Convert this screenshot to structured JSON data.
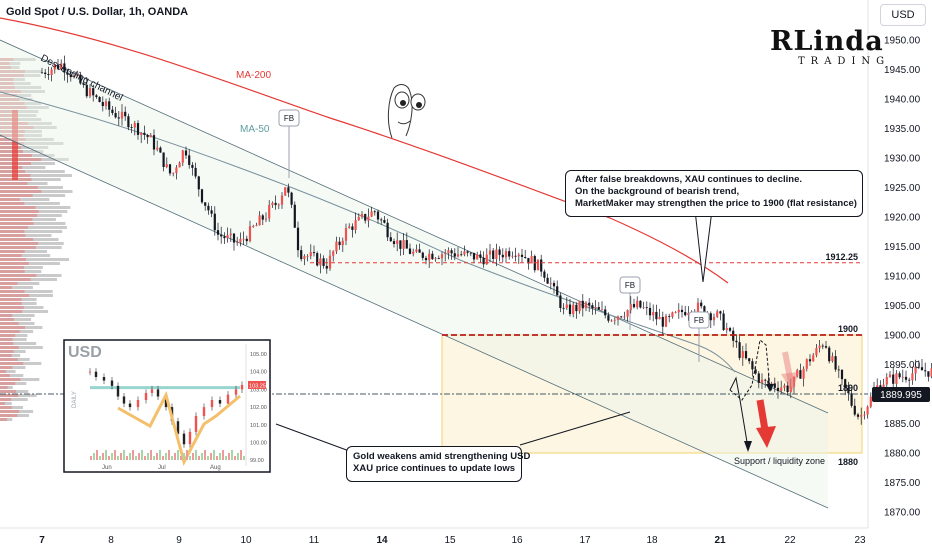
{
  "header": {
    "title": "Gold Spot / U.S. Dollar, 1h, OANDA",
    "currency_button": "USD"
  },
  "logo": {
    "main": "RLinda",
    "sub": "TRADING"
  },
  "chart_data": {
    "type": "candlestick",
    "title": "Gold Spot / U.S. Dollar, 1h, OANDA",
    "y_range": [
      1866,
      1956
    ],
    "y_ticks": [
      "1950.00",
      "1945.00",
      "1940.00",
      "1935.00",
      "1930.00",
      "1925.00",
      "1920.00",
      "1915.00",
      "1910.00",
      "1905.00",
      "1900.00",
      "1895.00",
      "1890.00",
      "1885.00",
      "1880.00",
      "1875.00",
      "1870.00"
    ],
    "x_ticks": [
      "7",
      "8",
      "9",
      "10",
      "11",
      "14",
      "15",
      "16",
      "17",
      "18",
      "21",
      "22",
      "23"
    ],
    "bold_x_ticks": [
      "7",
      "14",
      "21"
    ],
    "current_price": "1889.995",
    "close_path": [
      [
        7.0,
        1944.5
      ],
      [
        7.3,
        1946
      ],
      [
        7.6,
        1942
      ],
      [
        8.0,
        1938
      ],
      [
        8.3,
        1936
      ],
      [
        8.6,
        1933
      ],
      [
        8.9,
        1927
      ],
      [
        9.1,
        1932
      ],
      [
        9.3,
        1925
      ],
      [
        9.6,
        1917
      ],
      [
        9.9,
        1915.5
      ],
      [
        10.2,
        1919
      ],
      [
        10.5,
        1923
      ],
      [
        10.6,
        1926
      ],
      [
        10.8,
        1914
      ],
      [
        11.2,
        1912
      ],
      [
        11.5,
        1918
      ],
      [
        11.9,
        1921
      ],
      [
        12.2,
        1916
      ],
      [
        12.5,
        1913.5
      ],
      [
        13.0,
        1914
      ],
      [
        13.5,
        1913
      ],
      [
        14.0,
        1914.5
      ],
      [
        14.4,
        1911
      ],
      [
        14.7,
        1904
      ],
      [
        15.0,
        1905
      ],
      [
        15.4,
        1903
      ],
      [
        15.8,
        1905
      ],
      [
        16.2,
        1902
      ],
      [
        16.6,
        1905
      ],
      [
        17.0,
        1903
      ],
      [
        17.3,
        1897
      ],
      [
        17.6,
        1892
      ],
      [
        18.0,
        1891
      ],
      [
        18.3,
        1896
      ],
      [
        18.5,
        1899
      ],
      [
        18.7,
        1893
      ],
      [
        19.0,
        1886
      ],
      [
        19.3,
        1892
      ],
      [
        19.6,
        1893
      ],
      [
        19.9,
        1894
      ],
      [
        20.2,
        1893.5
      ],
      [
        20.5,
        1888.5
      ],
      [
        20.8,
        1890
      ]
    ],
    "levels": [
      {
        "value": 1912.25,
        "label": "1912.25",
        "style": "dashed",
        "color": "#e53935"
      },
      {
        "value": 1900,
        "label": "1900",
        "style": "dashed",
        "color": "#b71c1c"
      },
      {
        "value": 1890,
        "label": "1890",
        "style": "dashdot",
        "color": "#455a64"
      },
      {
        "value": 1880,
        "label": "1880",
        "style": "none",
        "color": "#f5d76e"
      }
    ],
    "indicators": [
      {
        "name": "MA-200",
        "color": "#e53935"
      },
      {
        "name": "MA-50",
        "color": "#5f9ea0"
      }
    ],
    "annotations": {
      "descending_channel": "Descending channel",
      "fb": [
        "FB",
        "FB",
        "FB"
      ],
      "support_zone": "Support / liquidity zone",
      "callout_top": [
        "After false breakdowns, XAU continues to decline.",
        "On the background of bearish trend,",
        "MarketMaker may strengthen the price to 1900 (flat resistance)"
      ],
      "callout_bottom": [
        "Gold weakens amid strengthening USD",
        "XAU price continues to update lows"
      ]
    },
    "inset": {
      "title": "USD",
      "side_label": "DAILY",
      "y_ticks": [
        "105.00",
        "104.00",
        "103.00",
        "102.00",
        "101.00",
        "100.00",
        "99.00"
      ],
      "current_value": "103.25",
      "x_ticks": [
        "Jun",
        "Jul",
        "Aug"
      ]
    }
  }
}
